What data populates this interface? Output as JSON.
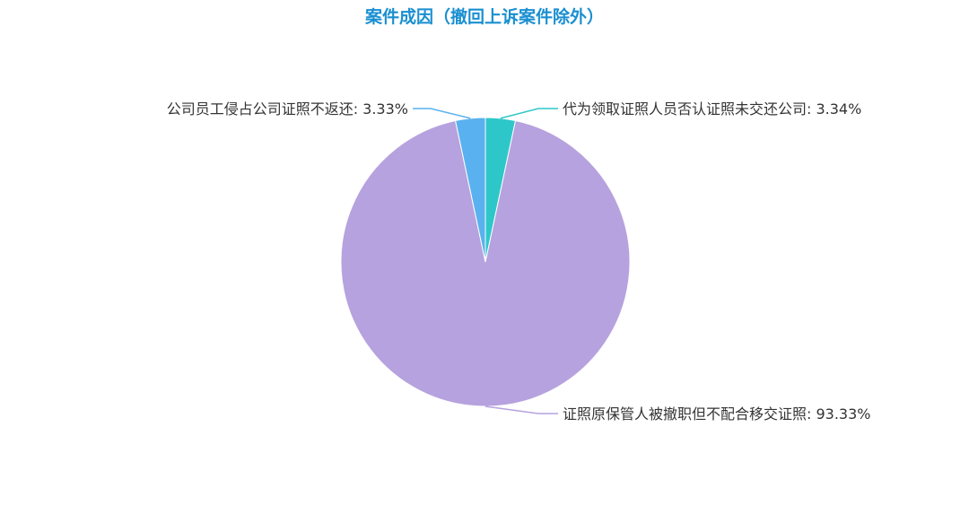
{
  "chart_data": {
    "type": "pie",
    "title": "案件成因（撤回上诉案件除外）",
    "slices": [
      {
        "label": "代为领取证照人员否认证照未交还公司",
        "value": 3.34,
        "display": "代为领取证照人员否认证照未交还公司: 3.34%",
        "color": "#2ec7c9"
      },
      {
        "label": "证照原保管人被撤职但不配合移交证照",
        "value": 93.33,
        "display": "证照原保管人被撤职但不配合移交证照: 93.33%",
        "color": "#b6a2de"
      },
      {
        "label": "公司员工侵占公司证照不返还",
        "value": 3.33,
        "display": "公司员工侵占公司证照不返还: 3.33%",
        "color": "#5ab1ef"
      }
    ],
    "start": "top",
    "direction": "clockwise",
    "legend": "none"
  }
}
